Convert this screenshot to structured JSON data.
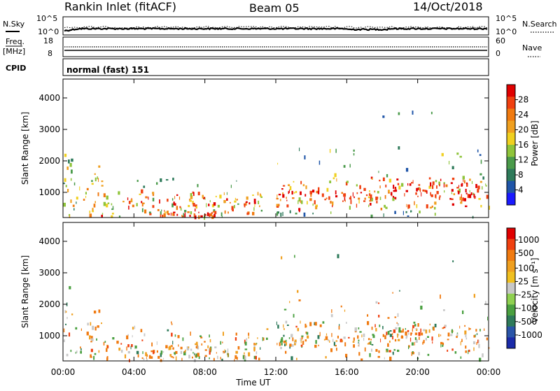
{
  "header": {
    "station": "Rankin Inlet (fitACF)",
    "beam": "Beam 05",
    "date": "14/Oct/2018"
  },
  "top_panels": {
    "nsky_label": "N.Sky",
    "nsky_ticks": [
      "10^5",
      "10^0"
    ],
    "nsearch_label": "N.Search",
    "nsearch_ticks": [
      "10^5",
      "10^0"
    ],
    "freq_label_1": "Freq.",
    "freq_label_2": "[MHz]",
    "freq_ticks": [
      "18",
      "8"
    ],
    "nave_label": "Nave",
    "nave_ticks": [
      "60",
      "0"
    ],
    "cpid_label": "CPID",
    "cpid_text": "normal (fast) 151"
  },
  "colors": {
    "power_scale": [
      "#1a1aff",
      "#1f55a8",
      "#2e7a5a",
      "#4a9a4a",
      "#8fc43a",
      "#f0d020",
      "#f0a020",
      "#f07a10",
      "#f04010",
      "#e00000"
    ],
    "velocity_scale": [
      "#1a2aa8",
      "#2a55a8",
      "#2e7a5a",
      "#4aa040",
      "#8fd050",
      "#c8c8c8",
      "#f0c020",
      "#f0a020",
      "#f07a10",
      "#f04010",
      "#e00000"
    ]
  },
  "chart_data": [
    {
      "type": "heatmap",
      "title": "",
      "xlabel": "Time UT",
      "ylabel": "Slant Range [km]",
      "x_ticks": [
        "00:00",
        "04:00",
        "08:00",
        "12:00",
        "16:00",
        "20:00",
        "00:00"
      ],
      "y_ticks": [
        "1000",
        "2000",
        "3000",
        "4000"
      ],
      "ylim": [
        200,
        4600
      ],
      "colorbar_label": "Power [dB]",
      "colorbar_ticks": [
        "4",
        "8",
        "12",
        "16",
        "20",
        "24",
        "28"
      ],
      "colorbar_range": [
        0,
        32
      ]
    },
    {
      "type": "heatmap",
      "title": "",
      "xlabel": "Time UT",
      "ylabel": "Slant Range [km]",
      "x_ticks": [
        "00:00",
        "04:00",
        "08:00",
        "12:00",
        "16:00",
        "20:00",
        "00:00"
      ],
      "y_ticks": [
        "1000",
        "2000",
        "3000",
        "4000"
      ],
      "ylim": [
        200,
        4600
      ],
      "colorbar_label": "Velocity [m s⁻¹]",
      "colorbar_ticks": [
        "1000",
        "500",
        "100",
        "25",
        "-25",
        "-100",
        "-500",
        "-1000"
      ]
    }
  ]
}
